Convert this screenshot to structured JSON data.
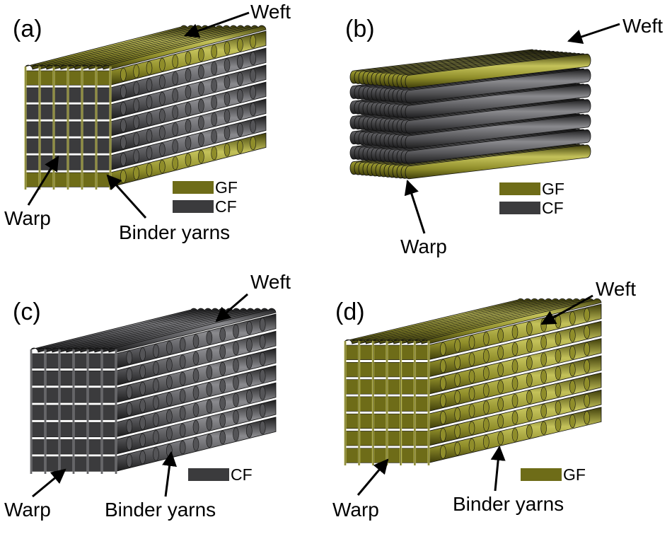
{
  "colors": {
    "gf_base": "#6e6c18",
    "gf_mid": "#8f8d2a",
    "gf_highlight": "#c4c25a",
    "gf_dark": "#3f3e0a",
    "cf_base": "#3b3b3d",
    "cf_mid": "#545457",
    "cf_highlight": "#8a8a8e",
    "cf_dark": "#1c1c1d",
    "outline": "#111111",
    "arrow": "#000000"
  },
  "icons": {
    "arrow": "arrow-icon",
    "legend_swatch": "legend-swatch-icon"
  },
  "panels": [
    {
      "id": "a",
      "label": "(a)",
      "weave": "3d-orthogonal-with-binders",
      "layers": [
        "GF",
        "CF",
        "CF",
        "CF",
        "CF",
        "CF",
        "GF"
      ],
      "annotations": [
        {
          "key": "weft",
          "text": "Weft"
        },
        {
          "key": "warp",
          "text": "Warp"
        },
        {
          "key": "binder",
          "text": "Binder yarns"
        }
      ],
      "legend": [
        {
          "text": "GF",
          "material": "GF"
        },
        {
          "text": "CF",
          "material": "CF"
        }
      ]
    },
    {
      "id": "b",
      "label": "(b)",
      "weave": "laminated-plies",
      "layers": [
        "GF",
        "CF",
        "CF",
        "CF",
        "CF",
        "CF",
        "GF"
      ],
      "annotations": [
        {
          "key": "weft",
          "text": "Weft"
        },
        {
          "key": "warp",
          "text": "Warp"
        }
      ],
      "legend": [
        {
          "text": "GF",
          "material": "GF"
        },
        {
          "text": "CF",
          "material": "CF"
        }
      ]
    },
    {
      "id": "c",
      "label": "(c)",
      "weave": "3d-orthogonal-with-binders",
      "layers": [
        "CF",
        "CF",
        "CF",
        "CF",
        "CF",
        "CF",
        "CF"
      ],
      "annotations": [
        {
          "key": "weft",
          "text": "Weft"
        },
        {
          "key": "warp",
          "text": "Warp"
        },
        {
          "key": "binder",
          "text": "Binder yarns"
        }
      ],
      "legend": [
        {
          "text": "CF",
          "material": "CF"
        }
      ]
    },
    {
      "id": "d",
      "label": "(d)",
      "weave": "3d-orthogonal-with-binders",
      "layers": [
        "GF",
        "GF",
        "GF",
        "GF",
        "GF",
        "GF",
        "GF"
      ],
      "annotations": [
        {
          "key": "weft",
          "text": "Weft"
        },
        {
          "key": "warp",
          "text": "Warp"
        },
        {
          "key": "binder",
          "text": "Binder yarns"
        }
      ],
      "legend": [
        {
          "text": "GF",
          "material": "GF"
        }
      ]
    }
  ]
}
